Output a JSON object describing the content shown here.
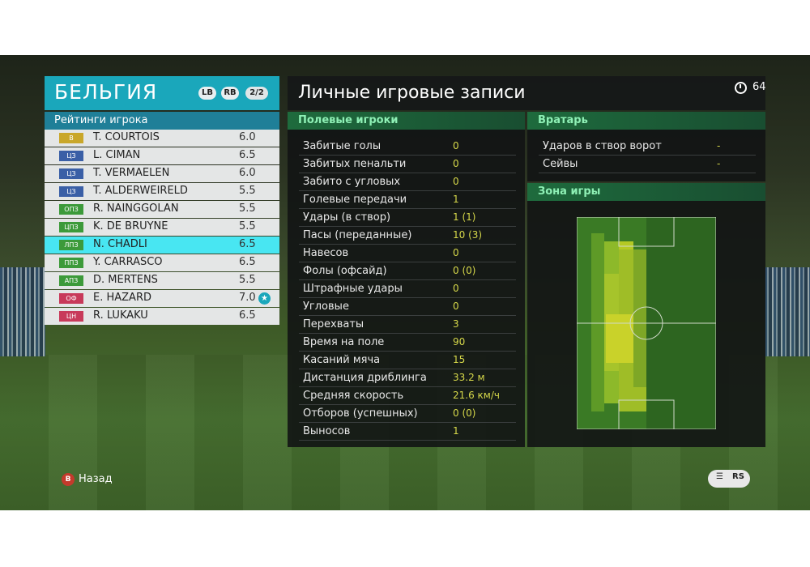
{
  "team": {
    "name": "БЕЛЬГИЯ",
    "lb": "LB",
    "rb": "RB",
    "page": "2/2"
  },
  "ratings_header": "Рейтинги игрока",
  "players": [
    {
      "pos": "В",
      "pos_color": "#c9a72a",
      "name": "T. COURTOIS",
      "rating": "6.0"
    },
    {
      "pos": "ЦЗ",
      "pos_color": "#3a5fa6",
      "name": "L. CIMAN",
      "rating": "6.5"
    },
    {
      "pos": "ЦЗ",
      "pos_color": "#3a5fa6",
      "name": "T. VERMAELEN",
      "rating": "6.0"
    },
    {
      "pos": "ЦЗ",
      "pos_color": "#3a5fa6",
      "name": "T. ALDERWEIRELD",
      "rating": "5.5"
    },
    {
      "pos": "ОПЗ",
      "pos_color": "#3c9a3a",
      "name": "R. NAINGGOLAN",
      "rating": "5.5"
    },
    {
      "pos": "ЦПЗ",
      "pos_color": "#3c9a3a",
      "name": "K. DE BRUYNE",
      "rating": "5.5"
    },
    {
      "pos": "ЛПЗ",
      "pos_color": "#3c9a3a",
      "name": "N. CHADLI",
      "rating": "6.5",
      "selected": true
    },
    {
      "pos": "ППЗ",
      "pos_color": "#3c9a3a",
      "name": "Y. CARRASCO",
      "rating": "6.5"
    },
    {
      "pos": "АПЗ",
      "pos_color": "#3c9a3a",
      "name": "D. MERTENS",
      "rating": "5.5"
    },
    {
      "pos": "ОФ",
      "pos_color": "#c83a5a",
      "name": "E. HAZARD",
      "rating": "7.0",
      "star": true
    },
    {
      "pos": "ЦН",
      "pos_color": "#c83a5a",
      "name": "R. LUKAKU",
      "rating": "6.5"
    }
  ],
  "main": {
    "title": "Личные игровые записи",
    "timer": "64"
  },
  "field_players": {
    "header": "Полевые игроки",
    "stats": [
      {
        "label": "Забитые голы",
        "value": "0"
      },
      {
        "label": "Забитых пенальти",
        "value": "0"
      },
      {
        "label": "Забито с угловых",
        "value": "0"
      },
      {
        "label": "Голевые передачи",
        "value": "1"
      },
      {
        "label": "Удары (в створ)",
        "value": "1 (1)"
      },
      {
        "label": "Пасы (переданные)",
        "value": "10 (3)"
      },
      {
        "label": "Навесов",
        "value": "0"
      },
      {
        "label": "Фолы (офсайд)",
        "value": "0 (0)"
      },
      {
        "label": "Штрафные удары",
        "value": "0"
      },
      {
        "label": "Угловые",
        "value": "0"
      },
      {
        "label": "Перехваты",
        "value": "3"
      },
      {
        "label": "Время на поле",
        "value": "90"
      },
      {
        "label": "Касаний мяча",
        "value": "15"
      },
      {
        "label": "Дистанция дриблинга",
        "value": "33.2 м"
      },
      {
        "label": "Средняя скорость",
        "value": "21.6 км/ч"
      },
      {
        "label": "Отборов (успешных)",
        "value": "0 (0)"
      },
      {
        "label": "Выносов",
        "value": "1"
      }
    ]
  },
  "goalkeeper": {
    "header": "Вратарь",
    "stats": [
      {
        "label": "Ударов в створ ворот",
        "value": "-"
      },
      {
        "label": "Сейвы",
        "value": "-"
      }
    ]
  },
  "zone": {
    "header": "Зона игры"
  },
  "footer": {
    "back_btn": "B",
    "back_label": "Назад",
    "right_btn1": "☰",
    "right_btn2": "RS"
  }
}
